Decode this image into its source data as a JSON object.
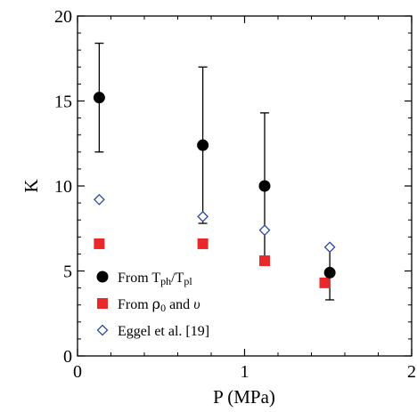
{
  "chart_data": {
    "type": "scatter",
    "xlabel": "P (MPa)",
    "ylabel": "K",
    "xlim": [
      0,
      2
    ],
    "ylim": [
      0,
      20
    ],
    "x_ticks": [
      0,
      1,
      2
    ],
    "y_ticks": [
      0,
      5,
      10,
      15,
      20
    ],
    "x_tick_labels": [
      "0",
      "1",
      "2"
    ],
    "y_tick_labels": [
      "0",
      "5",
      "10",
      "15",
      "20"
    ],
    "grid": false,
    "legend_position": "bottom-left",
    "series": [
      {
        "key": "tph",
        "legend": {
          "main": "From T",
          "sub1": "ph",
          "mid": "/T",
          "sub2": "pl"
        },
        "marker": "circle",
        "color": "#000000",
        "points": [
          {
            "x": 0.13,
            "y": 15.2,
            "ylow": 12.0,
            "yhigh": 18.4
          },
          {
            "x": 0.75,
            "y": 12.4,
            "ylow": 7.8,
            "yhigh": 17.0
          },
          {
            "x": 1.12,
            "y": 10.0,
            "ylow": 5.6,
            "yhigh": 14.3
          },
          {
            "x": 1.51,
            "y": 4.9,
            "ylow": 3.3,
            "yhigh": 6.4
          }
        ]
      },
      {
        "key": "rho",
        "legend": {
          "main": "From  ",
          "rho": "ρ",
          "sub": "0",
          "tail": " and ",
          "v": "υ"
        },
        "marker": "square",
        "color": "#e8282b",
        "points": [
          {
            "x": 0.13,
            "y": 6.6
          },
          {
            "x": 0.75,
            "y": 6.6
          },
          {
            "x": 1.12,
            "y": 5.6
          },
          {
            "x": 1.48,
            "y": 4.3
          }
        ]
      },
      {
        "key": "eggel",
        "legend": {
          "text": "Eggel et al. [19]"
        },
        "marker": "diamond-open",
        "color": "#2f4a9e",
        "points": [
          {
            "x": 0.13,
            "y": 9.2
          },
          {
            "x": 0.75,
            "y": 8.2
          },
          {
            "x": 1.12,
            "y": 7.4
          },
          {
            "x": 1.51,
            "y": 6.4
          }
        ]
      }
    ]
  }
}
